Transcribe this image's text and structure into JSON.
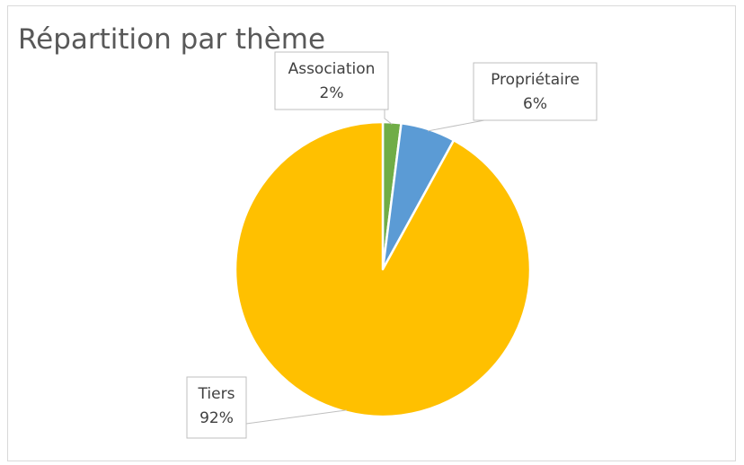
{
  "chart_data": {
    "type": "pie",
    "title": "Répartition par thème",
    "series": [
      {
        "values": [
          {
            "label": "Association",
            "value": 2,
            "value_label": "2%",
            "color": "#70ad47"
          },
          {
            "label": "Propriétaire",
            "value": 6,
            "value_label": "6%",
            "color": "#5b9bd5"
          },
          {
            "label": "Tiers",
            "value": 92,
            "value_label": "92%",
            "color": "#ffc000"
          }
        ]
      }
    ],
    "slice_border_color": "#ffffff",
    "legend": "none"
  }
}
